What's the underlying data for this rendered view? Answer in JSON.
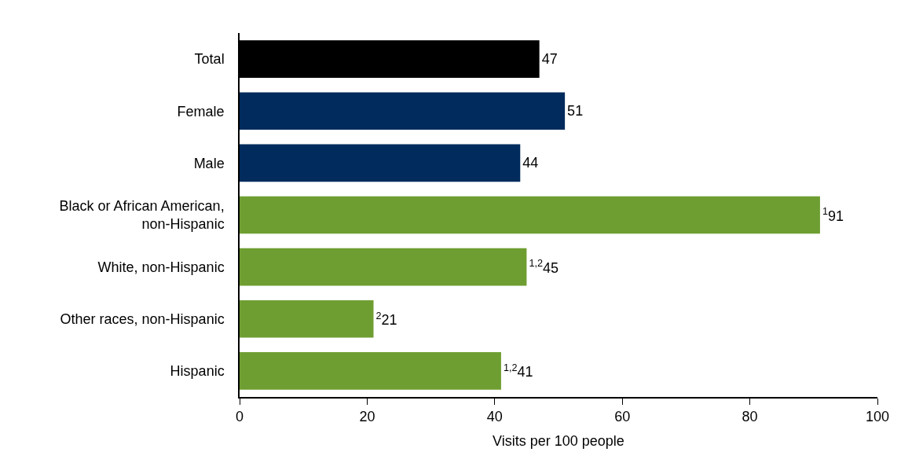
{
  "chart_data": {
    "type": "bar",
    "orientation": "horizontal",
    "xlabel": "Visits per 100 people",
    "categories": [
      "Total",
      "Female",
      "Male",
      "Black or African American, non-Hispanic",
      "White, non-Hispanic",
      "Other races, non-Hispanic",
      "Hispanic"
    ],
    "values": [
      47,
      51,
      44,
      91,
      45,
      21,
      41
    ],
    "colors": [
      "#000000",
      "#002b5c",
      "#002b5c",
      "#6e9e31",
      "#6e9e31",
      "#6e9e31",
      "#6e9e31"
    ],
    "value_labels": [
      "47",
      "51",
      "44",
      "$^{1}$91",
      "$^{1,2}$45",
      "$^{2}$21",
      "$^{1,2}$41"
    ],
    "xlim": [
      0,
      100
    ],
    "xticks": [
      0,
      20,
      40,
      60,
      80,
      100
    ]
  }
}
